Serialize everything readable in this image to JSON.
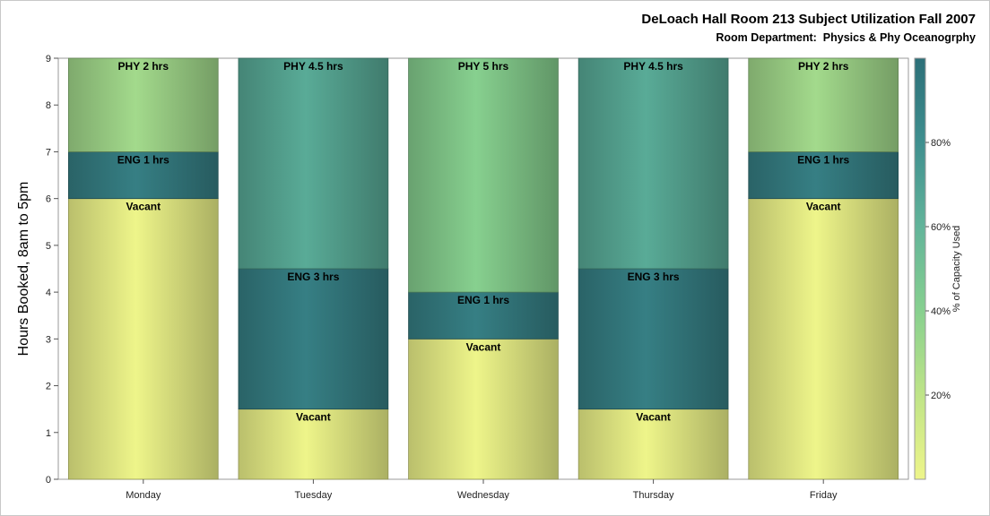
{
  "chart_data": {
    "type": "bar",
    "stacked": true,
    "title": "DeLoach Hall Room 213 Subject Utilization Fall 2007",
    "subtitle": "Room Department:  Physics & Phy Oceanogrphy",
    "ylabel": "Hours Booked, 8am to 5pm",
    "xlabel": "",
    "ylim": [
      0,
      9
    ],
    "yticks": [
      "0",
      "1",
      "2",
      "3",
      "4",
      "5",
      "6",
      "7",
      "8",
      "9"
    ],
    "categories": [
      "Monday",
      "Tuesday",
      "Wednesday",
      "Thursday",
      "Friday"
    ],
    "bars": [
      {
        "category": "Monday",
        "segments": [
          {
            "label": "Vacant",
            "value": 6,
            "pct": 0
          },
          {
            "label": "ENG 1 hrs",
            "value": 1,
            "pct": 90
          },
          {
            "label": "PHY 2 hrs",
            "value": 2,
            "pct": 30
          }
        ]
      },
      {
        "category": "Tuesday",
        "segments": [
          {
            "label": "Vacant",
            "value": 1.5,
            "pct": 0
          },
          {
            "label": "ENG 3 hrs",
            "value": 3,
            "pct": 90
          },
          {
            "label": "PHY 4.5 hrs",
            "value": 4.5,
            "pct": 65
          }
        ]
      },
      {
        "category": "Wednesday",
        "segments": [
          {
            "label": "Vacant",
            "value": 3,
            "pct": 0
          },
          {
            "label": "ENG 1 hrs",
            "value": 1,
            "pct": 90
          },
          {
            "label": "PHY 5 hrs",
            "value": 5,
            "pct": 40
          }
        ]
      },
      {
        "category": "Thursday",
        "segments": [
          {
            "label": "Vacant",
            "value": 1.5,
            "pct": 0
          },
          {
            "label": "ENG 3 hrs",
            "value": 3,
            "pct": 90
          },
          {
            "label": "PHY 4.5 hrs",
            "value": 4.5,
            "pct": 65
          }
        ]
      },
      {
        "category": "Friday",
        "segments": [
          {
            "label": "Vacant",
            "value": 6,
            "pct": 0
          },
          {
            "label": "ENG 1 hrs",
            "value": 1,
            "pct": 90
          },
          {
            "label": "PHY 2 hrs",
            "value": 2,
            "pct": 30
          }
        ]
      }
    ],
    "colorbar": {
      "label": "% of Capacity Used",
      "ticks": [
        "20%",
        "40%",
        "60%",
        "80%"
      ],
      "range": [
        0,
        100
      ],
      "colors": [
        "#eef58a",
        "#bfe488",
        "#87d08f",
        "#62b49a",
        "#3f8f8f",
        "#2c6f78"
      ]
    },
    "grid": false,
    "legend": "colorbar-right"
  }
}
